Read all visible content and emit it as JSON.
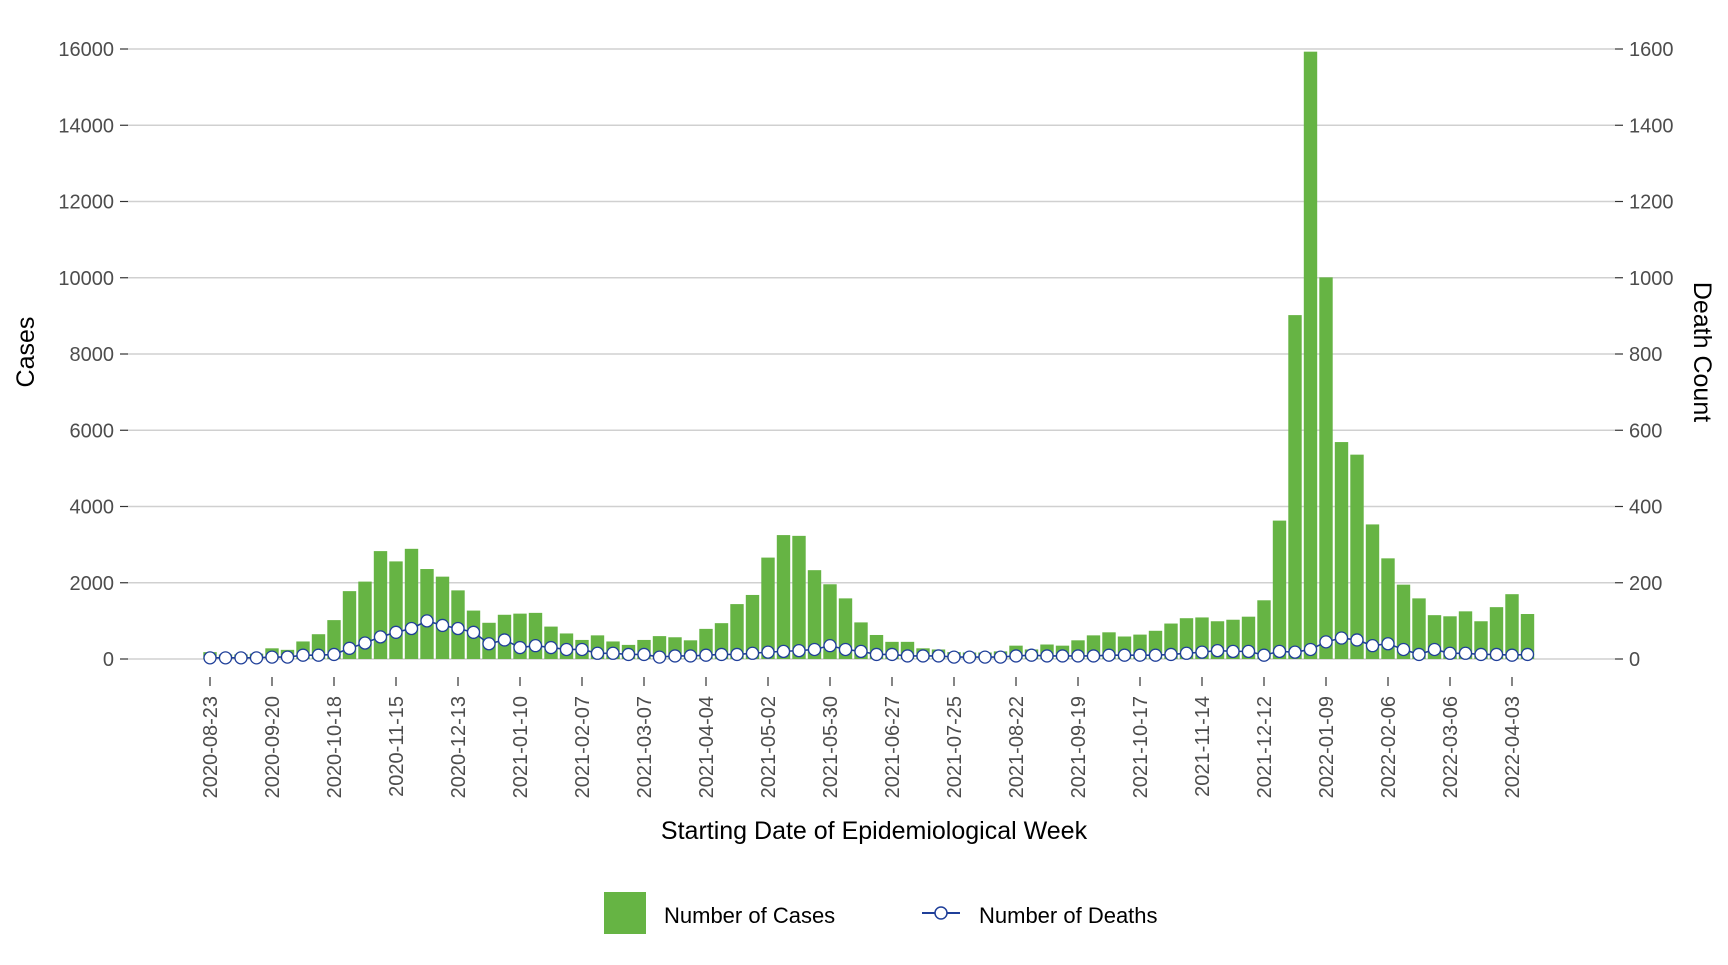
{
  "chart_data": {
    "type": "bar",
    "title": "",
    "xlabel": "Starting Date of Epidemiological Week",
    "ylabel": "Cases",
    "ylabel_right": "Death Count",
    "ylim": [
      0,
      16000
    ],
    "ylim_right": [
      0,
      1600
    ],
    "yticks": [
      0,
      2000,
      4000,
      6000,
      8000,
      10000,
      12000,
      14000,
      16000
    ],
    "yticks_right": [
      0,
      200,
      400,
      600,
      800,
      1000,
      1200,
      1400,
      1600
    ],
    "grid": true,
    "legend_position": "bottom",
    "x_tick_labels": [
      "2020-08-23",
      "2020-09-20",
      "2020-10-18",
      "2020-11-15",
      "2020-12-13",
      "2021-01-10",
      "2021-02-07",
      "2021-03-07",
      "2021-04-04",
      "2021-05-02",
      "2021-05-30",
      "2021-06-27",
      "2021-07-25",
      "2021-08-22",
      "2021-09-19",
      "2021-10-17",
      "2021-11-14",
      "2021-12-12",
      "2022-01-09",
      "2022-02-06",
      "2022-03-06",
      "2022-04-03"
    ],
    "x_tick_every": 4,
    "series": [
      {
        "name": "Number of Cases",
        "type": "bar",
        "axis": "left",
        "color": "#66b444",
        "values": [
          180,
          120,
          120,
          140,
          280,
          240,
          460,
          650,
          1020,
          1780,
          2030,
          2830,
          2560,
          2890,
          2360,
          2160,
          1800,
          1270,
          950,
          1160,
          1190,
          1210,
          850,
          670,
          500,
          620,
          460,
          370,
          500,
          600,
          570,
          490,
          790,
          940,
          1440,
          1680,
          2660,
          3250,
          3230,
          2330,
          1960,
          1590,
          960,
          630,
          450,
          450,
          280,
          250,
          180,
          170,
          170,
          200,
          350,
          250,
          380,
          350,
          490,
          620,
          700,
          590,
          640,
          740,
          930,
          1070,
          1090,
          990,
          1030,
          1110,
          1540,
          3630,
          9020,
          15930,
          10010,
          5690,
          5360,
          3530,
          2640,
          1950,
          1590,
          1150,
          1120,
          1250,
          990,
          1360,
          1700,
          1180
        ]
      },
      {
        "name": "Number of Deaths",
        "type": "line",
        "axis": "right",
        "color": "#1f3f99",
        "values": [
          3,
          3,
          3,
          3,
          5,
          5,
          10,
          10,
          12,
          28,
          42,
          58,
          70,
          80,
          100,
          88,
          80,
          70,
          40,
          50,
          30,
          35,
          30,
          25,
          25,
          15,
          15,
          12,
          12,
          5,
          8,
          8,
          10,
          12,
          12,
          15,
          18,
          20,
          22,
          25,
          35,
          25,
          20,
          12,
          12,
          8,
          8,
          8,
          5,
          5,
          5,
          5,
          8,
          10,
          8,
          8,
          8,
          8,
          10,
          10,
          10,
          10,
          12,
          15,
          18,
          22,
          20,
          20,
          10,
          20,
          18,
          25,
          45,
          55,
          50,
          35,
          40,
          25,
          12,
          25,
          15,
          15,
          12,
          12,
          10,
          12
        ]
      }
    ]
  }
}
